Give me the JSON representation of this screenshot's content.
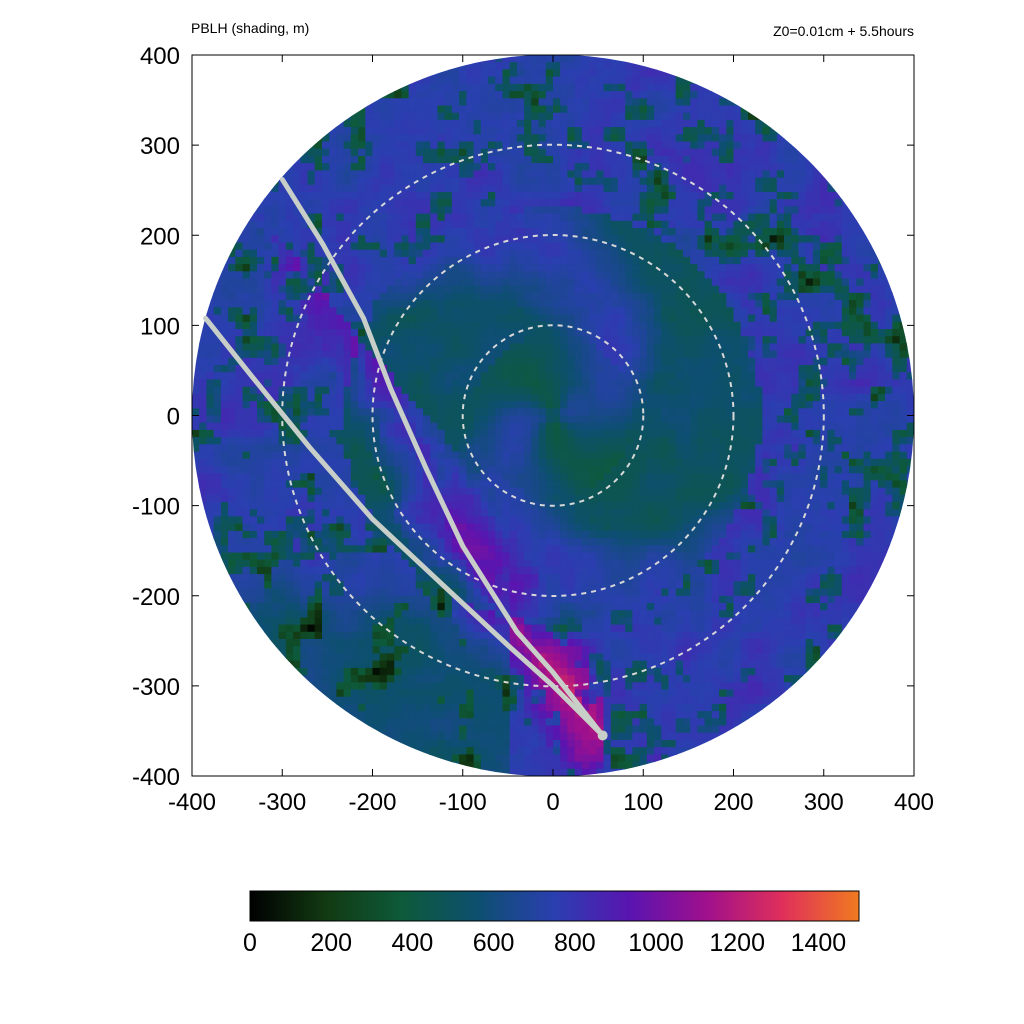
{
  "chart_data": {
    "type": "heatmap",
    "title": "PBLH (shading, m)",
    "subtitle": "Z0=0.01cm  + 5.5hours",
    "xlim": [
      -400,
      400
    ],
    "ylim": [
      -400,
      400
    ],
    "x_ticks": [
      -400,
      -300,
      -200,
      -100,
      0,
      100,
      200,
      300,
      400
    ],
    "y_ticks": [
      -400,
      -300,
      -200,
      -100,
      0,
      100,
      200,
      300,
      400
    ],
    "x_tick_labels": [
      "-400",
      "-300",
      "-200",
      "-100",
      "0",
      "100",
      "200",
      "300",
      "400"
    ],
    "y_tick_labels": [
      "-400",
      "-300",
      "-200",
      "-100",
      "0",
      "100",
      "200",
      "300",
      "400"
    ],
    "domain_radius": 400,
    "range_rings_radius": [
      100,
      200,
      300
    ],
    "colorbar": {
      "min": 0,
      "max": 1500,
      "ticks": [
        0,
        200,
        400,
        600,
        800,
        1000,
        1200,
        1400
      ],
      "tick_labels": [
        "0",
        "200",
        "400",
        "600",
        "800",
        "1000",
        "1200",
        "1400"
      ],
      "colormap": [
        "#000000",
        "#123a12",
        "#0d5a3a",
        "#0d4f70",
        "#2a3fb0",
        "#5a14b0",
        "#a0108c",
        "#e0305a",
        "#f07a20"
      ]
    },
    "boundary_lines": [
      {
        "points": [
          [
            -300,
            262
          ],
          [
            -255,
            190
          ],
          [
            -210,
            108
          ],
          [
            -180,
            30
          ],
          [
            -140,
            -60
          ],
          [
            -100,
            -145
          ],
          [
            -40,
            -240
          ],
          [
            0,
            -285
          ],
          [
            55,
            -355
          ]
        ]
      },
      {
        "points": [
          [
            -385,
            108
          ],
          [
            -335,
            45
          ],
          [
            -270,
            -35
          ],
          [
            -200,
            -115
          ],
          [
            -120,
            -190
          ],
          [
            -50,
            -255
          ],
          [
            0,
            -300
          ],
          [
            55,
            -355
          ]
        ]
      }
    ],
    "grid": false,
    "colorbar_location": "bottom"
  }
}
